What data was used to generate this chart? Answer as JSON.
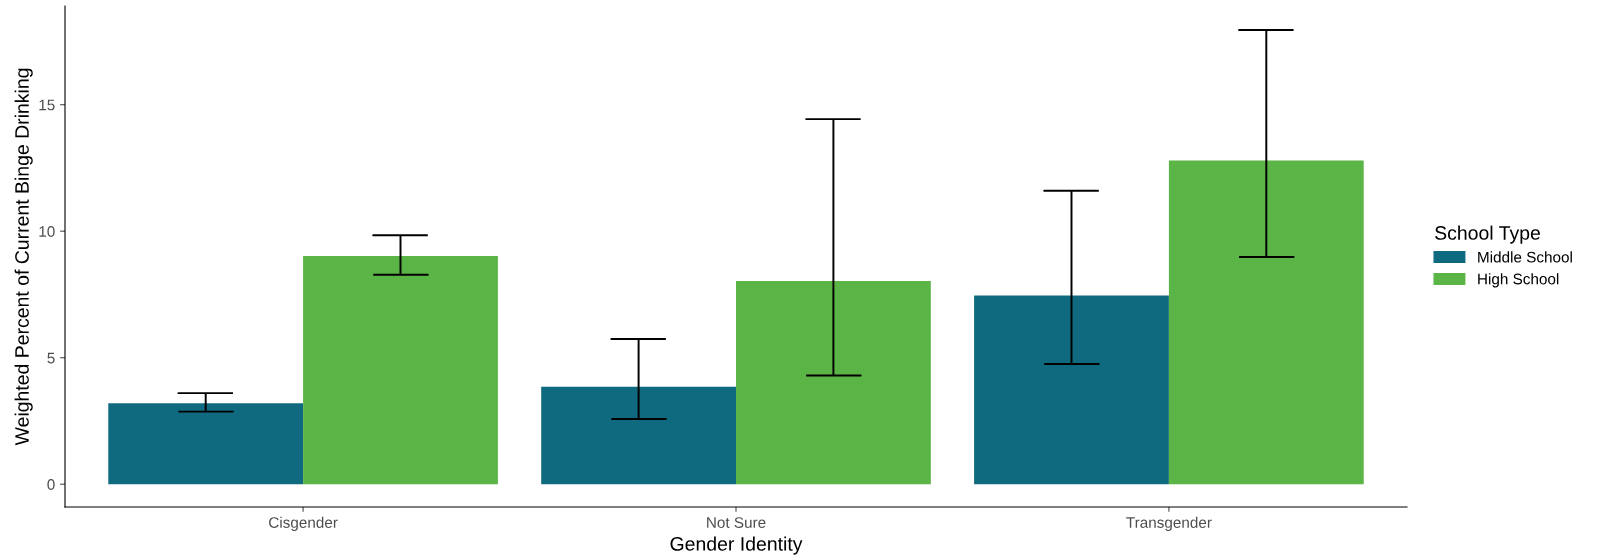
{
  "chart_data": {
    "type": "bar",
    "xlabel": "Gender Identity",
    "ylabel": "Weighted Percent of Current Binge Drinking",
    "legend_title": "School Type",
    "categories": [
      "Cisgender",
      "Not Sure",
      "Transgender"
    ],
    "series": [
      {
        "name": "Middle School",
        "color": "#0f6a80",
        "values": [
          3.2,
          3.85,
          7.46
        ],
        "errors": [
          [
            2.87,
            3.6
          ],
          [
            2.58,
            5.74
          ],
          [
            4.75,
            11.6
          ]
        ]
      },
      {
        "name": "High School",
        "color": "#5ab446",
        "values": [
          9.02,
          8.03,
          12.79
        ],
        "errors": [
          [
            8.28,
            9.84
          ],
          [
            4.3,
            14.43
          ],
          [
            8.98,
            17.95
          ]
        ]
      }
    ],
    "ylim": [
      -0.9,
      18.9
    ],
    "yticks": [
      0,
      5,
      10,
      15
    ],
    "grid": false,
    "legend": "right"
  }
}
